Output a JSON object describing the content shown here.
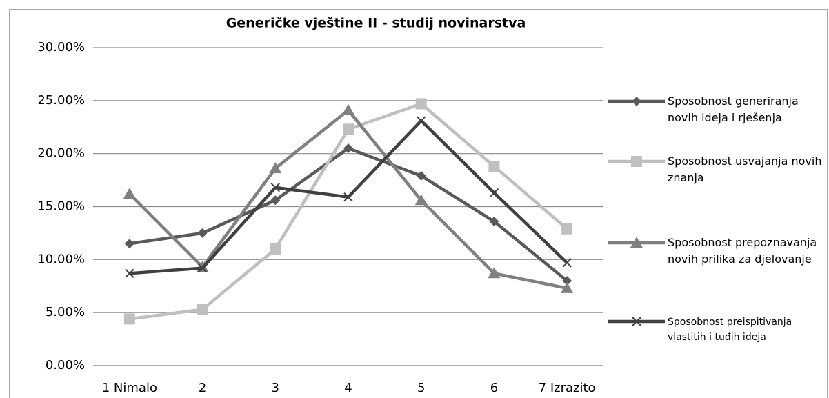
{
  "chart_data": {
    "type": "line",
    "title": "Generičke vještine II - studij novinarstva",
    "categories": [
      "1 Nimalo",
      "2",
      "3",
      "4",
      "5",
      "6",
      "7 Izrazito"
    ],
    "series": [
      {
        "name": "Sposobnost generiranja novih ideja i rješenja",
        "color": "#595959",
        "marker": "diamond",
        "values": [
          11.5,
          12.5,
          15.6,
          20.5,
          17.9,
          13.6,
          8.0
        ]
      },
      {
        "name": "Sposobnost usvajanja novih znanja",
        "color": "#bfbfbf",
        "marker": "square",
        "values": [
          4.4,
          5.3,
          11.0,
          22.3,
          24.7,
          18.8,
          12.9
        ]
      },
      {
        "name": "Sposobnost prepoznavanja novih prilika za djelovanje",
        "color": "#808080",
        "marker": "triangle",
        "values": [
          16.2,
          9.3,
          18.6,
          24.1,
          15.6,
          8.7,
          7.3
        ]
      },
      {
        "name": "Sposobnost preispitivanja vlastitih i tuđih ideja",
        "color": "#404040",
        "marker": "x",
        "values": [
          8.7,
          9.2,
          16.8,
          15.9,
          23.1,
          16.3,
          9.7
        ]
      }
    ],
    "ylim": [
      0,
      30
    ],
    "yticks": [
      {
        "value": 0,
        "label": "0.00%"
      },
      {
        "value": 5,
        "label": "5.00%"
      },
      {
        "value": 10,
        "label": "10.00%"
      },
      {
        "value": 15,
        "label": "15.00%"
      },
      {
        "value": 20,
        "label": "20.00%"
      },
      {
        "value": 25,
        "label": "25.00%"
      },
      {
        "value": 30,
        "label": "30.00%"
      }
    ],
    "grid": true,
    "legend": "right"
  }
}
